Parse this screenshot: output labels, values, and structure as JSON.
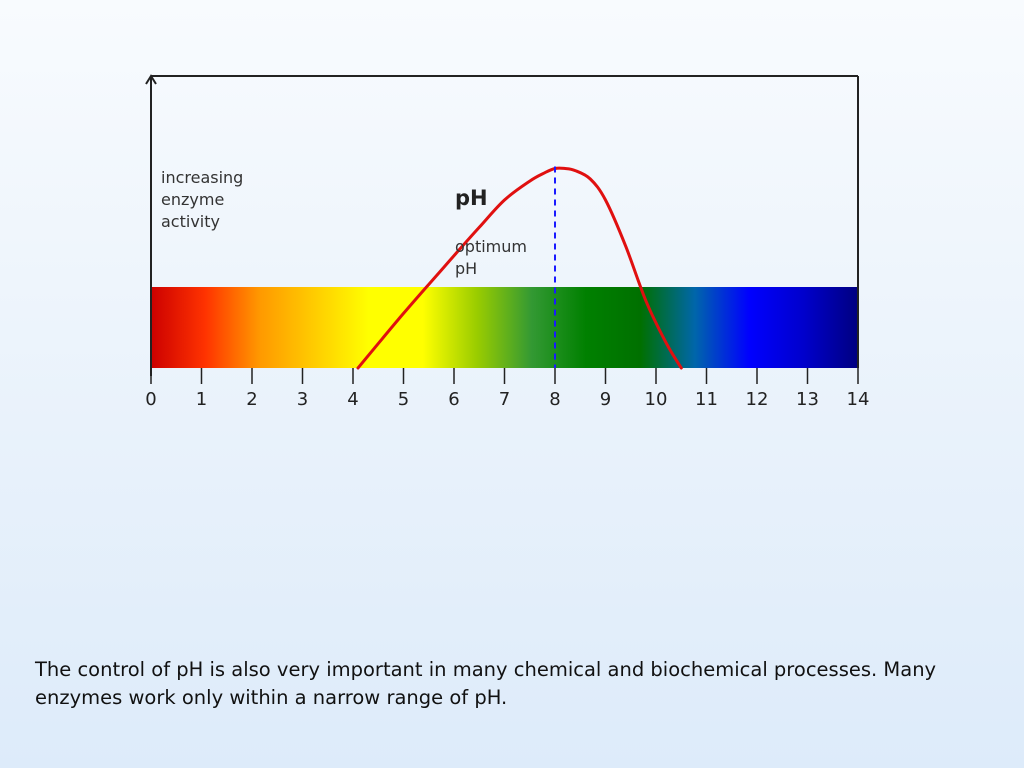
{
  "chart_data": {
    "type": "line",
    "title": "",
    "xlabel": "",
    "ylabel_lines": [
      "increasing",
      "enzyme",
      "activity"
    ],
    "curve_label": "pH",
    "optimum_label_lines": [
      "optimum",
      "pH"
    ],
    "optimum_ph": 8,
    "xlim": [
      0,
      14
    ],
    "ylim": [
      0,
      1
    ],
    "x_ticks": [
      "0",
      "1",
      "2",
      "3",
      "4",
      "5",
      "6",
      "7",
      "8",
      "9",
      "10",
      "11",
      "12",
      "13",
      "14"
    ],
    "series": [
      {
        "x": [
          4.1,
          5.0,
          5.8,
          6.5,
          7.0,
          7.5,
          7.8,
          8.0,
          8.2,
          8.4,
          8.7,
          9.0,
          9.4,
          9.8,
          10.2,
          10.5
        ],
        "y": [
          0.0,
          0.26,
          0.48,
          0.67,
          0.8,
          0.89,
          0.93,
          0.95,
          0.95,
          0.94,
          0.9,
          0.8,
          0.58,
          0.32,
          0.12,
          0.0
        ]
      }
    ],
    "colors": {
      "curve": "#e01010",
      "optimum_line": "#1a1aff",
      "axis": "#222222",
      "spectrum": [
        "#cc0000",
        "#ff3300",
        "#ff9900",
        "#ffcc00",
        "#ffff00",
        "#ffff00",
        "#99cc00",
        "#339933",
        "#008000",
        "#007000",
        "#0066aa",
        "#0000ff",
        "#0000cc",
        "#000080"
      ]
    }
  },
  "caption": "The control of pH is also very important in many chemical and biochemical processes. Many enzymes work only within a narrow range of pH."
}
